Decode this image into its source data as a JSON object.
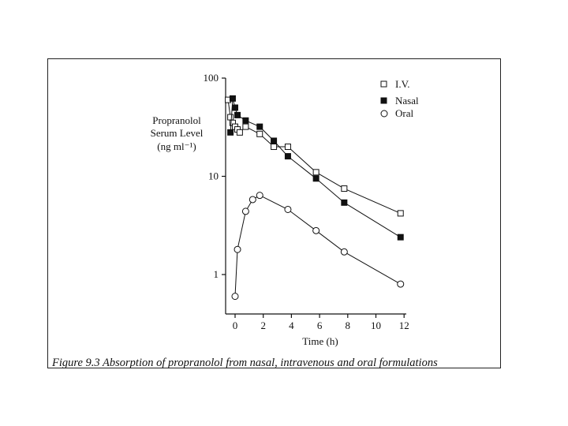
{
  "figure": {
    "caption": "Figure 9.3 Absorption of propranolol from nasal, intravenous and oral formulations"
  },
  "chart_data": {
    "type": "scatter",
    "connected_lines": true,
    "ylabel_lines": [
      "Propranolol",
      "Serum Level",
      "(ng ml⁻¹)"
    ],
    "xlabel": "Time (h)",
    "x_ticks": [
      0,
      2,
      4,
      6,
      8,
      10,
      12
    ],
    "x_tick_labels": [
      "0",
      "2",
      "4",
      "6",
      "8",
      "10",
      "12"
    ],
    "y_ticks": [
      1,
      10,
      100
    ],
    "y_tick_labels": [
      "1",
      "10",
      "100"
    ],
    "xlim": [
      -0.5,
      12
    ],
    "ylim": [
      0.5,
      100
    ],
    "y_scale": "log",
    "grid": false,
    "legend_position": "top-right",
    "series": [
      {
        "name": "I.V.",
        "marker": "open-square",
        "color": "#111111",
        "x": [
          -0.5,
          -0.33,
          -0.17,
          0,
          0.17,
          0.33,
          0.75,
          1.75,
          2.75,
          3.75,
          5.75,
          7.75,
          11.75
        ],
        "y": [
          60,
          40,
          35,
          32,
          30,
          28,
          32,
          27,
          20,
          20,
          11,
          7.5,
          4.2
        ]
      },
      {
        "name": "Nasal",
        "marker": "filled-square",
        "color": "#111111",
        "x": [
          -0.33,
          -0.17,
          0,
          0.17,
          0.75,
          1.75,
          2.75,
          3.75,
          5.75,
          7.75,
          11.75
        ],
        "y": [
          28,
          62,
          50,
          42,
          37,
          32,
          23,
          16,
          9.5,
          5.4,
          2.4
        ]
      },
      {
        "name": "Oral",
        "marker": "open-circle",
        "color": "#111111",
        "x": [
          0,
          0.17,
          0.75,
          1.25,
          1.75,
          3.75,
          5.75,
          7.75,
          11.75
        ],
        "y": [
          0.6,
          1.8,
          4.4,
          5.8,
          6.4,
          4.6,
          2.8,
          1.7,
          0.8
        ]
      }
    ]
  }
}
